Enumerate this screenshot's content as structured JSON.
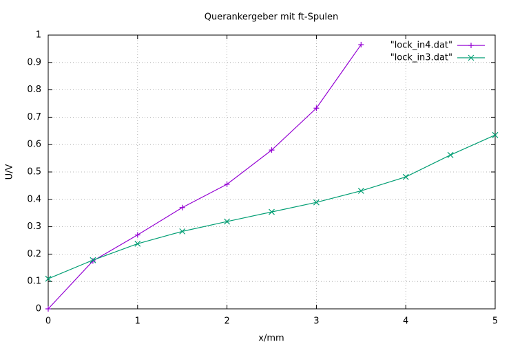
{
  "chart_data": {
    "type": "line",
    "title": "Querankergeber mit ft-Spulen",
    "x_label": "x/mm",
    "y_label": "U/V",
    "xlim": [
      0,
      5
    ],
    "xticks": [
      0,
      1,
      2,
      3,
      4,
      5
    ],
    "ylim": [
      0,
      1
    ],
    "yticks": [
      0,
      0.1,
      0.2,
      0.3,
      0.4,
      0.5,
      0.6,
      0.7,
      0.8,
      0.9,
      1
    ],
    "grid": true,
    "legend": "top-right",
    "series": [
      {
        "name": "\"lock_in4.dat\"",
        "color": "#9400d3",
        "marker": "plus",
        "x": [
          0,
          0.5,
          1,
          1.5,
          2,
          2.5,
          3,
          3.5
        ],
        "values": [
          0,
          0.175,
          0.27,
          0.37,
          0.455,
          0.58,
          0.733,
          0.965
        ]
      },
      {
        "name": "\"lock_in3.dat\"",
        "color": "#009e73",
        "marker": "cross",
        "x": [
          0,
          0.5,
          1,
          1.5,
          2,
          2.5,
          3,
          3.5,
          4,
          4.5,
          5
        ],
        "values": [
          0.11,
          0.178,
          0.238,
          0.283,
          0.319,
          0.354,
          0.389,
          0.431,
          0.482,
          0.562,
          0.635
        ]
      }
    ]
  }
}
